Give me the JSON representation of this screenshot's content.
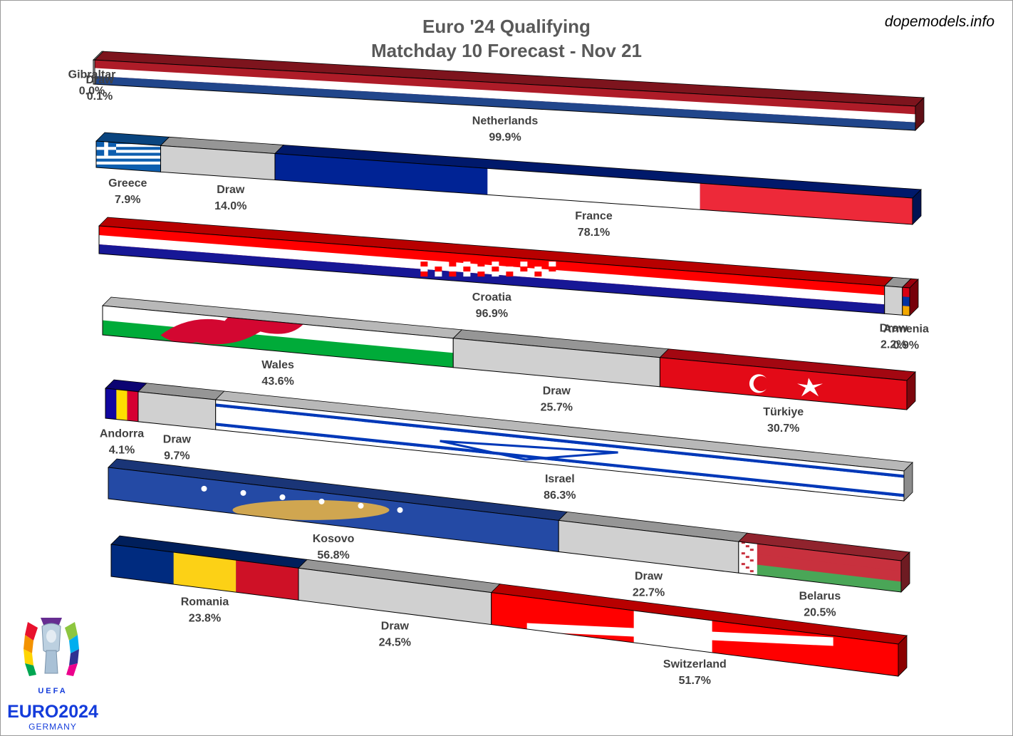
{
  "title": "Euro '24 Qualifying",
  "subtitle": "Matchday 10 Forecast - Nov 21",
  "watermark": "dopemodels.info",
  "logo": {
    "word": "EURO2024",
    "country": "GERMANY",
    "org": "UEFA",
    "icon": "euro-2024-trophy-logo"
  },
  "chart_data": {
    "type": "bar",
    "orientation": "horizontal-stacked-3d",
    "unit": "%",
    "matches": [
      {
        "home": "Gibraltar",
        "home_pct": 0.0,
        "draw_pct": 0.1,
        "away": "Netherlands",
        "away_pct": 99.9,
        "home_flag": [
          "#e8112d",
          "#ffffff"
        ],
        "away_flag": [
          "#ae1c28",
          "#ffffff",
          "#21468b"
        ]
      },
      {
        "home": "Greece",
        "home_pct": 7.9,
        "draw_pct": 14.0,
        "away": "France",
        "away_pct": 78.1,
        "home_flag": [
          "#0d5eaf",
          "#ffffff"
        ],
        "away_flag": [
          "#002395",
          "#ffffff",
          "#ed2939"
        ]
      },
      {
        "home": "Croatia",
        "home_pct": 96.9,
        "draw_pct": 2.2,
        "away": "Armenia",
        "away_pct": 0.9,
        "home_flag": [
          "#ff0000",
          "#ffffff",
          "#171796"
        ],
        "away_flag": [
          "#d90012",
          "#0033a0",
          "#f2a800"
        ]
      },
      {
        "home": "Wales",
        "home_pct": 43.6,
        "draw_pct": 25.7,
        "away": "Türkiye",
        "away_pct": 30.7,
        "home_flag": [
          "#ffffff",
          "#00ab39",
          "#d30731"
        ],
        "away_flag": [
          "#e30a17",
          "#ffffff"
        ]
      },
      {
        "home": "Andorra",
        "home_pct": 4.1,
        "draw_pct": 9.7,
        "away": "Israel",
        "away_pct": 86.3,
        "home_flag": [
          "#10069f",
          "#fedd00",
          "#d50032"
        ],
        "away_flag": [
          "#ffffff",
          "#0038b8"
        ]
      },
      {
        "home": "Kosovo",
        "home_pct": 56.8,
        "draw_pct": 22.7,
        "away": "Belarus",
        "away_pct": 20.5,
        "home_flag": [
          "#244aa5",
          "#d0a650",
          "#ffffff"
        ],
        "away_flag": [
          "#c8313e",
          "#4aa657",
          "#ffffff"
        ]
      },
      {
        "home": "Romania",
        "home_pct": 23.8,
        "draw_pct": 24.5,
        "away": "Switzerland",
        "away_pct": 51.7,
        "home_flag": [
          "#002b7f",
          "#fcd116",
          "#ce1126"
        ],
        "away_flag": [
          "#ff0000",
          "#ffffff"
        ]
      }
    ],
    "draw_label": "Draw",
    "draw_color": "#d0d0d0"
  }
}
